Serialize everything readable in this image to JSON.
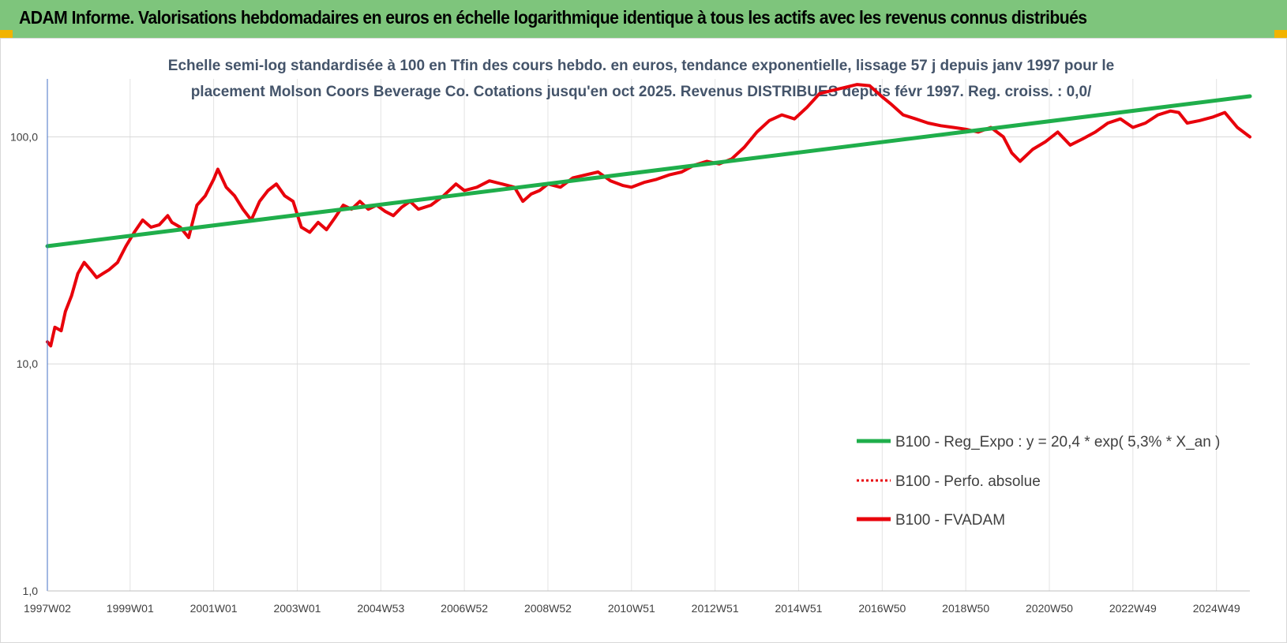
{
  "header": {
    "title": "ADAM Informe. Valorisations hebdomadaires en euros en échelle logarithmique identique à tous les actifs avec les revenus connus distribués",
    "background": "#7ec57c",
    "corner_color": "#f2b300"
  },
  "chart_data": {
    "type": "line",
    "title_lines": [
      "Echelle semi-log standardisée à 100 en Tfin des cours hebdo. en euros, tendance exponentielle, lissage 57 j depuis janv 1997 pour le",
      "placement Molson Coors Beverage Co. Cotations jusqu'en oct 2025. Revenus DISTRIBUES depuis févr 1997. Reg. croiss. : 0,0/"
    ],
    "y_scale": "log",
    "ylim": [
      1,
      180
    ],
    "y_ticks": [
      {
        "value": 1,
        "label": "1,0"
      },
      {
        "value": 10,
        "label": "10,0"
      },
      {
        "value": 100,
        "label": "100,0"
      }
    ],
    "xlim": [
      1997.02,
      2025.8
    ],
    "x_ticks": [
      {
        "value": 1997.02,
        "label": "1997W02"
      },
      {
        "value": 1999.0,
        "label": "1999W01"
      },
      {
        "value": 2001.0,
        "label": "2001W01"
      },
      {
        "value": 2003.0,
        "label": "2003W01"
      },
      {
        "value": 2005.0,
        "label": "2004W53"
      },
      {
        "value": 2007.0,
        "label": "2006W52"
      },
      {
        "value": 2009.0,
        "label": "2008W52"
      },
      {
        "value": 2011.0,
        "label": "2010W51"
      },
      {
        "value": 2013.0,
        "label": "2012W51"
      },
      {
        "value": 2015.0,
        "label": "2014W51"
      },
      {
        "value": 2017.0,
        "label": "2016W50"
      },
      {
        "value": 2019.0,
        "label": "2018W50"
      },
      {
        "value": 2021.0,
        "label": "2020W50"
      },
      {
        "value": 2023.0,
        "label": "2022W49"
      },
      {
        "value": 2025.0,
        "label": "2024W49"
      }
    ],
    "grid": "vertical and horizontal, light gray",
    "legend_position": "lower-right",
    "series": [
      {
        "name": "B100 - Reg_Expo : y = 20,4 * exp( 5,3% *  X_an )",
        "color": "#1fae4b",
        "style": "solid",
        "x": [
          1997.02,
          2025.8
        ],
        "values": [
          33.0,
          151.0
        ]
      },
      {
        "name": "B100 - Perfo. absolue",
        "color": "#e8000b",
        "style": "dotted",
        "x": [],
        "values": []
      },
      {
        "name": "B100 - FVADAM",
        "color": "#e8000b",
        "style": "solid",
        "x": [
          1997.02,
          1997.1,
          1997.2,
          1997.35,
          1997.45,
          1997.6,
          1997.75,
          1997.9,
          1998.05,
          1998.2,
          1998.35,
          1998.5,
          1998.7,
          1998.9,
          1999.1,
          1999.3,
          1999.5,
          1999.7,
          1999.9,
          2000.0,
          2000.2,
          2000.4,
          2000.6,
          2000.8,
          2001.0,
          2001.1,
          2001.3,
          2001.5,
          2001.7,
          2001.9,
          2002.1,
          2002.3,
          2002.5,
          2002.7,
          2002.9,
          2003.1,
          2003.3,
          2003.5,
          2003.7,
          2003.9,
          2004.1,
          2004.3,
          2004.5,
          2004.7,
          2004.9,
          2005.1,
          2005.3,
          2005.5,
          2005.7,
          2005.9,
          2006.2,
          2006.5,
          2006.8,
          2007.0,
          2007.3,
          2007.6,
          2007.9,
          2008.2,
          2008.4,
          2008.6,
          2008.8,
          2009.0,
          2009.3,
          2009.6,
          2009.9,
          2010.2,
          2010.5,
          2010.8,
          2011.0,
          2011.3,
          2011.6,
          2011.9,
          2012.2,
          2012.5,
          2012.8,
          2013.1,
          2013.4,
          2013.7,
          2014.0,
          2014.3,
          2014.6,
          2014.9,
          2015.2,
          2015.5,
          2015.8,
          2016.1,
          2016.4,
          2016.7,
          2017.0,
          2017.2,
          2017.5,
          2017.8,
          2018.1,
          2018.4,
          2018.7,
          2019.0,
          2019.3,
          2019.6,
          2019.9,
          2020.1,
          2020.3,
          2020.6,
          2020.9,
          2021.2,
          2021.5,
          2021.8,
          2022.1,
          2022.4,
          2022.7,
          2023.0,
          2023.3,
          2023.6,
          2023.9,
          2024.1,
          2024.3,
          2024.6,
          2024.9,
          2025.2,
          2025.5,
          2025.8
        ],
        "values": [
          12.5,
          12.0,
          14.5,
          14.0,
          17.0,
          20.0,
          25.0,
          28.0,
          26.0,
          24.0,
          25.0,
          26.0,
          28.0,
          33.0,
          38.0,
          43.0,
          40.0,
          41.0,
          45.0,
          42.0,
          40.0,
          36.0,
          50.0,
          55.0,
          65.0,
          72.0,
          60.0,
          55.0,
          48.0,
          43.0,
          52.0,
          58.0,
          62.0,
          55.0,
          52.0,
          40.0,
          38.0,
          42.0,
          39.0,
          44.0,
          50.0,
          48.0,
          52.0,
          48.0,
          50.0,
          47.0,
          45.0,
          49.0,
          52.0,
          48.0,
          50.0,
          55.0,
          62.0,
          58.0,
          60.0,
          64.0,
          62.0,
          60.0,
          52.0,
          56.0,
          58.0,
          62.0,
          60.0,
          66.0,
          68.0,
          70.0,
          64.0,
          61.0,
          60.0,
          63.0,
          65.0,
          68.0,
          70.0,
          75.0,
          78.0,
          76.0,
          80.0,
          90.0,
          105.0,
          118.0,
          125.0,
          120.0,
          135.0,
          155.0,
          160.0,
          165.0,
          170.0,
          168.0,
          150.0,
          140.0,
          125.0,
          120.0,
          115.0,
          112.0,
          110.0,
          108.0,
          105.0,
          110.0,
          100.0,
          85.0,
          78.0,
          88.0,
          95.0,
          105.0,
          92.0,
          98.0,
          105.0,
          115.0,
          120.0,
          110.0,
          115.0,
          125.0,
          130.0,
          128.0,
          115.0,
          118.0,
          122.0,
          128.0,
          110.0,
          100.0
        ]
      }
    ]
  }
}
